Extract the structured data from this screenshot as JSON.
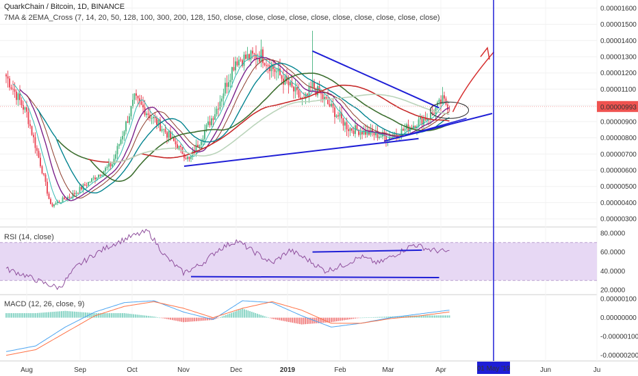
{
  "header": {
    "symbol": "QuarkChain / Bitcoin, 1D, BINANCE",
    "indicator": "7MA & 2EMA_Cross (7, 14, 20, 50, 128, 100, 300, 200, 128, 150, close, close, close, close, close, close, close, close, close, close)"
  },
  "rsi_panel": {
    "title": "RSI (14, close)",
    "axis_ticks": [
      "80.0000",
      "60.0000",
      "40.0000",
      "20.0000"
    ]
  },
  "macd_panel": {
    "title": "MACD (12, 26, close, 9)",
    "axis_ticks": [
      "0.00000100",
      "0.00000000",
      "-0.00000100",
      "-0.00000200"
    ]
  },
  "price_badge": "0.00000993",
  "date_badge": "01 May '19",
  "colors": {
    "up": "#53b987",
    "down": "#eb4d5c",
    "trendline": "#1e1ed6",
    "vertical": "#1e1ed6",
    "arrow": "#d63030",
    "rsi": "#8e4e9c",
    "rsi_band": "#e7d8f4",
    "macd": "#4aa3f0",
    "signal": "#ff7043",
    "ma_red": "#c62828",
    "ma_green": "#3c6e2f",
    "ma_blue": "#1a8ab0",
    "ma_teal": "#2eb8b0",
    "ma_purple": "#7a1f8a",
    "ma_brown": "#8b3a2a",
    "ma_lightgreen": "#b9d3b9",
    "ma_navy": "#00838f"
  },
  "chart_data": [
    {
      "type": "candlestick",
      "title": "QuarkChain / Bitcoin, 1D, BINANCE",
      "y_axis_ticks": [
        "0.00001600",
        "0.00001500",
        "0.00001400",
        "0.00001300",
        "0.00001200",
        "0.00001100",
        "0.00001000",
        "0.00000900",
        "0.00000800",
        "0.00000700",
        "0.00000600",
        "0.00000500",
        "0.00000400",
        "0.00000300"
      ],
      "ylim": [
        2.5e-06,
        1.65e-05
      ],
      "x_axis_ticks": [
        "Aug",
        "Sep",
        "Oct",
        "Nov",
        "Dec",
        "2019",
        "Feb",
        "Mar",
        "Apr",
        "Jun",
        "Ju"
      ],
      "last_price": 9.93e-06,
      "price_path_key_points": [
        {
          "x": "Jul 20",
          "y": 1.18e-05
        },
        {
          "x": "Aug 1",
          "y": 9.5e-06
        },
        {
          "x": "Aug 10",
          "y": 6e-06
        },
        {
          "x": "Aug 15",
          "y": 3.8e-06
        },
        {
          "x": "Aug 28",
          "y": 4.5e-06
        },
        {
          "x": "Sep 20",
          "y": 6.4e-06
        },
        {
          "x": "Oct 3",
          "y": 1.04e-05
        },
        {
          "x": "Oct 20",
          "y": 8.5e-06
        },
        {
          "x": "Nov 4",
          "y": 6.6e-06
        },
        {
          "x": "Nov 20",
          "y": 9.8e-06
        },
        {
          "x": "Dec 1",
          "y": 1.28e-05
        },
        {
          "x": "Dec 16",
          "y": 1.31e-05
        },
        {
          "x": "Jan 10",
          "y": 1.02e-05
        },
        {
          "x": "Jan 15",
          "y": 1.12e-05
        },
        {
          "x": "Feb 5",
          "y": 8.6e-06
        },
        {
          "x": "Mar 1",
          "y": 8e-06
        },
        {
          "x": "Mar 25",
          "y": 9.4e-06
        },
        {
          "x": "Apr 1",
          "y": 1.03e-05
        },
        {
          "x": "Apr 5",
          "y": 9.93e-06
        }
      ],
      "annotations": [
        "Descending trendline from mid-Jan high to late Mar",
        "Ascending support trendline from Nov low",
        "Projected breakout arrow up toward May",
        "Vertical line at 01 May '19"
      ]
    },
    {
      "type": "line",
      "title": "RSI (14, close)",
      "ylim": [
        15,
        85
      ],
      "band": [
        30,
        70
      ],
      "y_axis_ticks": [
        "80.0000",
        "60.0000",
        "40.0000",
        "20.0000"
      ],
      "values_key_points": [
        42,
        36,
        28,
        22,
        45,
        58,
        68,
        76,
        82,
        55,
        38,
        47,
        63,
        72,
        60,
        48,
        62,
        52,
        40,
        46,
        55,
        48,
        58,
        68,
        62,
        60
      ],
      "trendlines": [
        "Rising resistance from ~60 (Jan) to ~62 (Mar)",
        "Flat support near ~34 from Nov to Mar"
      ]
    },
    {
      "type": "macd",
      "title": "MACD (12, 26, close, 9)",
      "ylim": [
        -2.3e-06,
        1.15e-06
      ],
      "y_axis_ticks": [
        "0.00000100",
        "0.00000000",
        "-0.00000100",
        "-0.00000200"
      ],
      "series": [
        {
          "name": "MACD",
          "values_key_points": [
            -1.8e-06,
            -1.5e-06,
            -5e-07,
            3e-07,
            8e-07,
            9e-07,
            3e-07,
            -1e-07,
            9e-07,
            8e-07,
            1e-07,
            -5e-07,
            -3e-07,
            0.0,
            2e-07,
            4e-07
          ]
        },
        {
          "name": "Signal",
          "values_key_points": [
            -2e-06,
            -1.7e-06,
            -8e-07,
            1e-07,
            6e-07,
            8.5e-07,
            5e-07,
            0.0,
            5e-07,
            8.5e-07,
            4e-07,
            -3e-07,
            -3e-07,
            -5e-08,
            1e-07,
            3e-07
          ]
        }
      ]
    }
  ]
}
